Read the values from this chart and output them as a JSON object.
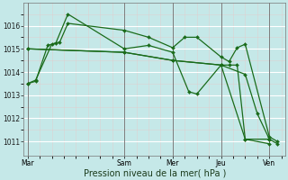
{
  "background_color": "#c5e8e8",
  "grid_color": "#ffffff",
  "grid_minor_color": "#ddf0f0",
  "line_color": "#1a6b1a",
  "marker": "D",
  "markersize": 2.0,
  "linewidth": 0.9,
  "ylabel": "Pression niveau de la mer( hPa )",
  "ylim": [
    1010.4,
    1017.0
  ],
  "yticks": [
    1011,
    1012,
    1013,
    1014,
    1015,
    1016
  ],
  "xtick_labels": [
    "Mar",
    "Sam",
    "Mer",
    "Jeu",
    "Ven"
  ],
  "xtick_positions": [
    0,
    48,
    72,
    96,
    120
  ],
  "xlim": [
    -2,
    128
  ],
  "vline_color": "#666666",
  "tick_fontsize": 5.5,
  "xlabel_fontsize": 7,
  "series": [
    {
      "x": [
        0,
        4,
        12,
        16,
        20,
        48,
        60,
        72,
        78,
        84,
        96,
        100,
        104,
        108,
        120,
        124
      ],
      "y": [
        1013.5,
        1013.65,
        1015.2,
        1015.3,
        1016.1,
        1015.8,
        1015.5,
        1015.05,
        1015.5,
        1015.5,
        1014.65,
        1014.45,
        1015.05,
        1015.2,
        1011.2,
        1011.0
      ]
    },
    {
      "x": [
        0,
        48,
        72,
        96,
        108,
        114,
        120,
        124
      ],
      "y": [
        1015.0,
        1014.85,
        1014.5,
        1014.3,
        1013.9,
        1012.2,
        1011.1,
        1010.9
      ]
    },
    {
      "x": [
        0,
        4,
        10,
        14,
        20,
        48,
        60,
        72,
        80,
        84,
        96,
        100,
        104,
        108,
        120
      ],
      "y": [
        1013.5,
        1013.6,
        1015.15,
        1015.25,
        1016.5,
        1015.0,
        1015.15,
        1014.85,
        1013.15,
        1013.05,
        1014.3,
        1014.3,
        1014.3,
        1011.1,
        1011.1
      ]
    },
    {
      "x": [
        0,
        48,
        72,
        96,
        108,
        120
      ],
      "y": [
        1015.0,
        1014.85,
        1014.5,
        1014.3,
        1011.1,
        1010.9
      ]
    }
  ]
}
